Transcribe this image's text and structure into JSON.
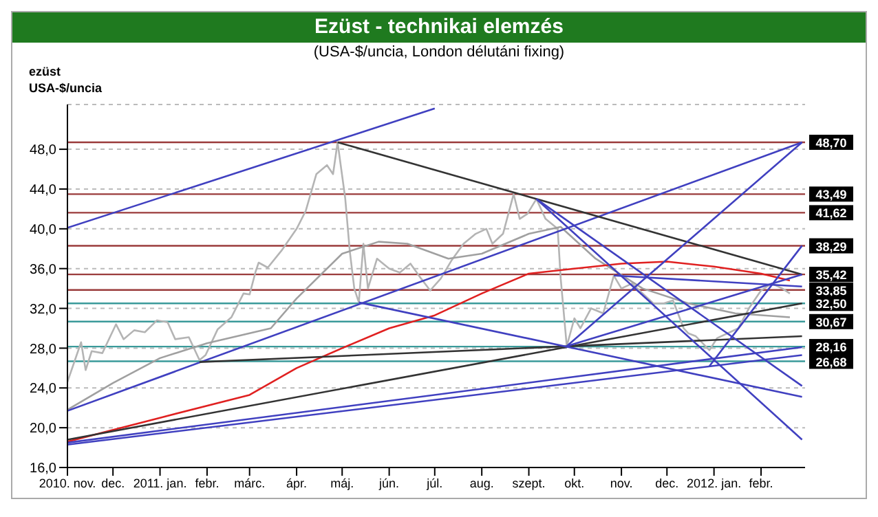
{
  "chart_data": {
    "type": "line",
    "title": "Ezüst - technikai elemzés",
    "subtitle": "(USA-$/uncia, London délutáni fixing)",
    "ylabel": "ezüst\nUSA-$/uncia",
    "xlim": [
      "2010-11-01",
      "2012-03-01"
    ],
    "xticks": [
      {
        "value": "2010-11-01",
        "label": "2010. nov."
      },
      {
        "value": "2010-12-01",
        "label": "dec."
      },
      {
        "value": "2011-01-01",
        "label": "2011. jan."
      },
      {
        "value": "2011-02-01",
        "label": "febr."
      },
      {
        "value": "2011-03-01",
        "label": "márc."
      },
      {
        "value": "2011-04-01",
        "label": "ápr."
      },
      {
        "value": "2011-05-01",
        "label": "máj."
      },
      {
        "value": "2011-06-01",
        "label": "jún."
      },
      {
        "value": "2011-07-01",
        "label": "júl."
      },
      {
        "value": "2011-08-01",
        "label": "aug."
      },
      {
        "value": "2011-09-01",
        "label": "szept."
      },
      {
        "value": "2011-10-01",
        "label": "okt."
      },
      {
        "value": "2011-11-01",
        "label": "nov."
      },
      {
        "value": "2011-12-01",
        "label": "dec."
      },
      {
        "value": "2012-01-01",
        "label": "2012. jan."
      },
      {
        "value": "2012-02-01",
        "label": "febr."
      }
    ],
    "ylim": [
      16,
      52.5
    ],
    "yticks": [
      {
        "value": 16,
        "label": "16,0"
      },
      {
        "value": 20,
        "label": "20,0"
      },
      {
        "value": 24,
        "label": "24,0"
      },
      {
        "value": 28,
        "label": "28,0"
      },
      {
        "value": 32,
        "label": "32,0"
      },
      {
        "value": 36,
        "label": "36,0"
      },
      {
        "value": 40,
        "label": "40,0"
      },
      {
        "value": 44,
        "label": "44,0"
      },
      {
        "value": 48,
        "label": "48,0"
      }
    ],
    "grid": "y",
    "ref_lines": [
      {
        "axis": "y",
        "value": 48.7,
        "label": "48,70",
        "color": "#9a3a3a"
      },
      {
        "axis": "y",
        "value": 43.49,
        "label": "43,49",
        "color": "#9a3a3a"
      },
      {
        "axis": "y",
        "value": 41.62,
        "label": "41,62",
        "color": "#9a3a3a"
      },
      {
        "axis": "y",
        "value": 38.29,
        "label": "38,29",
        "color": "#9a3a3a"
      },
      {
        "axis": "y",
        "value": 35.42,
        "label": "35,42",
        "color": "#9a3a3a"
      },
      {
        "axis": "y",
        "value": 33.85,
        "label": "33,85",
        "color": "#9a3a3a"
      },
      {
        "axis": "y",
        "value": 32.5,
        "label": "32,50",
        "color": "#3a9a9a"
      },
      {
        "axis": "y",
        "value": 30.67,
        "label": "30,67",
        "color": "#3a9a9a"
      },
      {
        "axis": "y",
        "value": 28.16,
        "label": "28,16",
        "color": "#3a9a9a"
      },
      {
        "axis": "y",
        "value": 26.68,
        "label": "26,68",
        "color": "#3a9a9a"
      }
    ],
    "series": [
      {
        "color": "#b4b4b4",
        "x": [
          "2010-11-01",
          "2010-11-10",
          "2010-11-13",
          "2010-11-17",
          "2010-11-24",
          "2010-12-03",
          "2010-12-08",
          "2010-12-15",
          "2010-12-22",
          "2010-12-30",
          "2011-01-06",
          "2011-01-11",
          "2011-01-20",
          "2011-01-27",
          "2011-01-31",
          "2011-02-08",
          "2011-02-17",
          "2011-02-25",
          "2011-03-01",
          "2011-03-05",
          "2011-03-07",
          "2011-03-13",
          "2011-03-22",
          "2011-04-01",
          "2011-04-07",
          "2011-04-14",
          "2011-04-21",
          "2011-04-25",
          "2011-04-28",
          "2011-05-03",
          "2011-05-06",
          "2011-05-09",
          "2011-05-12",
          "2011-05-15",
          "2011-05-18",
          "2011-05-24",
          "2011-06-01",
          "2011-06-08",
          "2011-06-15",
          "2011-06-22",
          "2011-06-28",
          "2011-07-05",
          "2011-07-12",
          "2011-07-20",
          "2011-07-28",
          "2011-08-04",
          "2011-08-08",
          "2011-08-15",
          "2011-08-22",
          "2011-08-26",
          "2011-08-31",
          "2011-09-06",
          "2011-09-12",
          "2011-09-20",
          "2011-09-22",
          "2011-09-26",
          "2011-10-01",
          "2011-10-05",
          "2011-10-12",
          "2011-10-20",
          "2011-10-27",
          "2011-11-01",
          "2011-11-08",
          "2011-11-15",
          "2011-11-22",
          "2011-11-29",
          "2011-12-05",
          "2011-12-12",
          "2011-12-15",
          "2011-12-20",
          "2011-12-29",
          "2012-01-03",
          "2012-01-10",
          "2012-01-17",
          "2012-01-24",
          "2012-02-01",
          "2012-02-08",
          "2012-02-15",
          "2012-02-20"
        ],
        "values": [
          24.6,
          28.6,
          25.8,
          27.7,
          27.5,
          30.4,
          28.9,
          29.8,
          29.6,
          30.8,
          30.6,
          28.9,
          29.1,
          26.8,
          27.3,
          29.9,
          31.1,
          33.5,
          33.4,
          35.7,
          36.6,
          36.1,
          37.8,
          40.0,
          41.8,
          45.5,
          46.4,
          45.5,
          48.7,
          43.1,
          37.8,
          34.0,
          32.6,
          38.5,
          34.0,
          37.0,
          36.0,
          35.6,
          36.5,
          35.0,
          33.8,
          35.0,
          36.8,
          38.5,
          39.5,
          40.0,
          38.5,
          39.5,
          43.5,
          41.0,
          41.5,
          43.0,
          41.0,
          40.0,
          35.0,
          28.2,
          31.0,
          30.0,
          32.0,
          31.5,
          35.3,
          34.0,
          34.5,
          33.5,
          32.5,
          32.5,
          32.8,
          30.0,
          29.5,
          29.2,
          27.8,
          29.0,
          29.5,
          30.0,
          32.0,
          33.8,
          34.5,
          34.0,
          33.5
        ]
      },
      {
        "color": "#a0a0a0",
        "x": [
          "2010-11-01",
          "2010-12-01",
          "2011-01-01",
          "2011-02-01",
          "2011-03-15",
          "2011-04-01",
          "2011-05-01",
          "2011-05-25",
          "2011-06-13",
          "2011-07-10",
          "2011-08-01",
          "2011-09-01",
          "2011-09-22",
          "2011-10-15",
          "2011-11-15",
          "2011-12-15",
          "2012-01-15",
          "2012-02-20"
        ],
        "values": [
          21.8,
          24.5,
          27.0,
          28.5,
          30.0,
          33.0,
          37.5,
          38.7,
          38.5,
          37.0,
          37.5,
          39.5,
          40.2,
          37.0,
          34.0,
          32.5,
          31.5,
          31.1
        ]
      },
      {
        "color": "#e02020",
        "x": [
          "2010-11-01",
          "2011-01-01",
          "2011-03-01",
          "2011-04-01",
          "2011-05-01",
          "2011-06-01",
          "2011-07-01",
          "2011-08-01",
          "2011-09-01",
          "2011-10-01",
          "2011-11-01",
          "2011-12-01",
          "2012-01-01",
          "2012-02-01",
          "2012-02-20"
        ],
        "values": [
          18.6,
          21.0,
          23.3,
          26.0,
          28.0,
          30.0,
          31.3,
          33.5,
          35.5,
          36.0,
          36.5,
          36.7,
          36.2,
          35.5,
          34.8
        ]
      },
      {
        "color": "#4040c0",
        "x": [
          "2010-11-01",
          "2011-07-01"
        ],
        "values": [
          40.1,
          52.1
        ]
      },
      {
        "color": "#4040c0",
        "x": [
          "2010-11-01",
          "2012-02-28"
        ],
        "values": [
          21.7,
          48.7
        ]
      },
      {
        "color": "#333333",
        "x": [
          "2011-04-28",
          "2012-02-28"
        ],
        "values": [
          48.7,
          35.4
        ]
      },
      {
        "color": "#333333",
        "x": [
          "2010-11-01",
          "2012-02-28"
        ],
        "values": [
          18.8,
          32.5
        ]
      },
      {
        "color": "#4040c0",
        "x": [
          "2010-11-01",
          "2012-02-28"
        ],
        "values": [
          18.5,
          28.1
        ]
      },
      {
        "color": "#4040c0",
        "x": [
          "2010-11-01",
          "2012-02-28"
        ],
        "values": [
          18.3,
          27.3
        ]
      },
      {
        "color": "#333333",
        "x": [
          "2011-01-27",
          "2012-02-28"
        ],
        "values": [
          26.6,
          29.2
        ]
      },
      {
        "color": "#4040c0",
        "x": [
          "2011-05-12",
          "2012-02-28"
        ],
        "values": [
          32.6,
          23.1
        ]
      },
      {
        "color": "#4040c0",
        "x": [
          "2011-09-06",
          "2012-02-28"
        ],
        "values": [
          43.0,
          24.2
        ]
      },
      {
        "color": "#4040c0",
        "x": [
          "2011-09-06",
          "2012-02-28"
        ],
        "values": [
          43.0,
          18.8
        ]
      },
      {
        "color": "#4040c0",
        "x": [
          "2011-09-26",
          "2012-02-28"
        ],
        "values": [
          28.2,
          48.7
        ]
      },
      {
        "color": "#4040c0",
        "x": [
          "2011-09-26",
          "2012-02-28"
        ],
        "values": [
          28.2,
          35.4
        ]
      },
      {
        "color": "#4040c0",
        "x": [
          "2011-12-29",
          "2012-02-28"
        ],
        "values": [
          26.2,
          38.3
        ]
      },
      {
        "color": "#4040c0",
        "x": [
          "2011-10-27",
          "2012-02-28"
        ],
        "values": [
          35.3,
          34.2
        ]
      }
    ]
  }
}
